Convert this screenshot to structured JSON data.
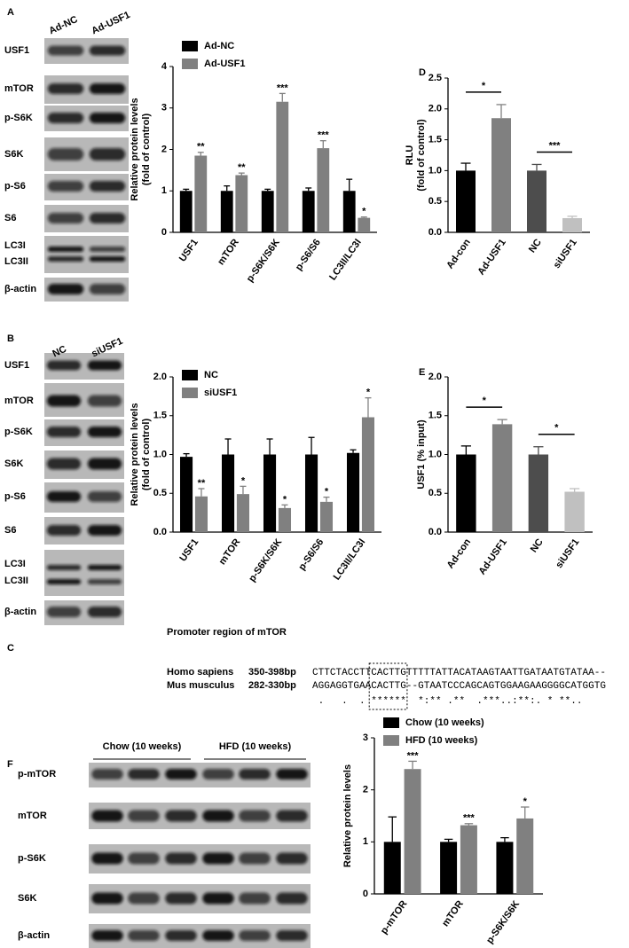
{
  "panels": [
    "A",
    "B",
    "C",
    "D",
    "E",
    "F"
  ],
  "blots": {
    "A": {
      "lanes": [
        "Ad-NC",
        "Ad-USF1"
      ],
      "rows": [
        "USF1",
        "mTOR",
        "p-S6K",
        "S6K",
        "p-S6",
        "S6",
        "LC3I",
        "LC3II",
        "β-actin"
      ]
    },
    "B": {
      "lanes": [
        "NC",
        "siUSF1"
      ],
      "rows": [
        "USF1",
        "mTOR",
        "p-S6K",
        "S6K",
        "p-S6",
        "S6",
        "LC3I",
        "LC3II",
        "β-actin"
      ]
    },
    "F": {
      "groups": [
        "Chow (10 weeks)",
        "HFD (10 weeks)"
      ],
      "rows": [
        "p-mTOR",
        "mTOR",
        "p-S6K",
        "S6K",
        "β-actin"
      ]
    }
  },
  "promoter": {
    "title": "Promoter region of mTOR",
    "rows": [
      {
        "species": "Homo sapiens",
        "range": "350-398bp",
        "sequence": "CTTCTACCTTCACTTGTTTTTATTACATAAGTAATTGATAATGTATAA--"
      },
      {
        "species": "Mus musculus",
        "range": "282-330bp",
        "sequence": "AGGAGGTGAACACTTG--GTAATCCCAGCAGTGGAAGAAGGGGCATGGTG"
      }
    ],
    "consensus": " .   .  . ******  *:** .**  .***..:**:. * **..    "
  },
  "chart_data": [
    {
      "type": "bar",
      "y_label": [
        "Relative protein levels",
        "(fold of control)"
      ],
      "categories": [
        "USF1",
        "mTOR",
        "p-S6K/S6K",
        "p-S6/S6",
        "LC3II/LC3I"
      ],
      "series": [
        {
          "name": "Ad-NC",
          "color": "#000000",
          "values": [
            1.0,
            1.0,
            1.0,
            1.0,
            1.0
          ],
          "errors": [
            0.04,
            0.12,
            0.04,
            0.07,
            0.28
          ]
        },
        {
          "name": "Ad-USF1",
          "color": "#808080",
          "values": [
            1.85,
            1.38,
            3.15,
            2.03,
            0.35
          ],
          "errors": [
            0.08,
            0.05,
            0.2,
            0.18,
            0.02
          ],
          "annotations": [
            "**",
            "**",
            "***",
            "***",
            "*"
          ]
        }
      ],
      "ylim": [
        0,
        4
      ],
      "yticks": [
        0,
        1,
        2,
        3,
        4
      ]
    },
    {
      "type": "bar",
      "y_label": [
        "Relative protein levels",
        "(fold of control)"
      ],
      "categories": [
        "USF1",
        "mTOR",
        "p-S6K/S6K",
        "p-S6/S6",
        "LC3II/LC3I"
      ],
      "series": [
        {
          "name": "NC",
          "color": "#000000",
          "values": [
            0.97,
            1.0,
            1.0,
            1.0,
            1.02
          ],
          "errors": [
            0.04,
            0.2,
            0.2,
            0.22,
            0.04
          ]
        },
        {
          "name": "siUSF1",
          "color": "#808080",
          "values": [
            0.46,
            0.49,
            0.31,
            0.39,
            1.48
          ],
          "errors": [
            0.1,
            0.1,
            0.04,
            0.06,
            0.25
          ],
          "annotations": [
            "**",
            "*",
            "*",
            "*",
            "*"
          ]
        }
      ],
      "ylim": [
        0,
        2
      ],
      "yticks": [
        {
          "value": 0,
          "label": "0.0"
        },
        0.5,
        {
          "value": 1,
          "label": "1.0"
        },
        1.5,
        {
          "value": 2,
          "label": "2.0"
        }
      ]
    },
    {
      "type": "bar",
      "y_label": [
        "RLU",
        "(fold of control)"
      ],
      "categories": [
        "Ad-con",
        "Ad-USF1",
        "NC",
        "siUSF1"
      ],
      "values": [
        1.0,
        1.85,
        1.0,
        0.23
      ],
      "errors": [
        0.12,
        0.22,
        0.1,
        0.03
      ],
      "colors": [
        "#000000",
        "#808080",
        "#4d4d4d",
        "#c0c0c0"
      ],
      "significance": [
        "*",
        "***"
      ],
      "ylim": [
        0,
        2.5
      ],
      "yticks": [
        {
          "value": 0,
          "label": "0.0"
        },
        0.5,
        {
          "value": 1,
          "label": "1.0"
        },
        1.5,
        {
          "value": 2,
          "label": "2.0"
        },
        2.5
      ]
    },
    {
      "type": "bar",
      "y_label": [
        "USF1 (% input)"
      ],
      "categories": [
        "Ad-con",
        "Ad-USF1",
        "NC",
        "siUSF1"
      ],
      "values": [
        1.0,
        1.39,
        1.0,
        0.52
      ],
      "errors": [
        0.11,
        0.06,
        0.1,
        0.04
      ],
      "colors": [
        "#000000",
        "#808080",
        "#4d4d4d",
        "#c0c0c0"
      ],
      "significance": [
        "*",
        "*"
      ],
      "ylim": [
        0,
        2
      ],
      "yticks": [
        {
          "value": 0,
          "label": "0.0"
        },
        0.5,
        {
          "value": 1,
          "label": "1.0"
        },
        1.5,
        {
          "value": 2,
          "label": "2.0"
        }
      ]
    },
    {
      "type": "bar",
      "y_label": [
        "Relative protein levels"
      ],
      "categories": [
        "p-mTOR",
        "mTOR",
        "p-S6K/S6K"
      ],
      "series": [
        {
          "name": "Chow (10 weeks)",
          "color": "#000000",
          "values": [
            1.0,
            1.0,
            1.0
          ],
          "errors": [
            0.48,
            0.05,
            0.08
          ]
        },
        {
          "name": "HFD (10 weeks)",
          "color": "#808080",
          "values": [
            2.4,
            1.32,
            1.45
          ],
          "errors": [
            0.15,
            0.03,
            0.22
          ],
          "annotations": [
            "***",
            "***",
            "*"
          ]
        }
      ],
      "ylim": [
        0,
        3
      ],
      "yticks": [
        0,
        1,
        2,
        3
      ]
    }
  ]
}
